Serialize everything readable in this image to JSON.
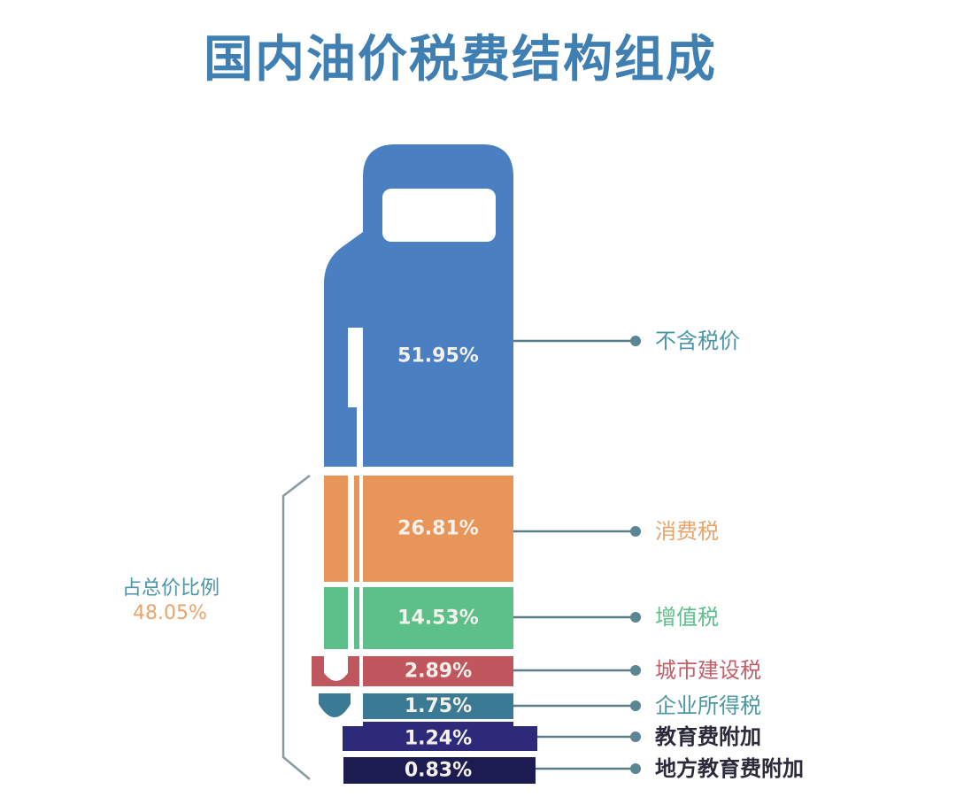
{
  "chart_data": {
    "type": "bar",
    "title": "国内油价税费结构组成",
    "unit": "%",
    "categories": [
      "不含税价",
      "消费税",
      "增值税",
      "城市建设税",
      "企业所得税",
      "教育费附加",
      "地方教育费附加"
    ],
    "values": [
      51.95,
      26.81,
      14.53,
      2.89,
      1.75,
      1.24,
      0.83
    ],
    "value_labels": [
      "51.95%",
      "26.81%",
      "14.53%",
      "2.89%",
      "1.75%",
      "1.24%",
      "0.83%"
    ],
    "colors": [
      "#4a7fc1",
      "#e8955a",
      "#5dbf8a",
      "#c0575e",
      "#3a7a94",
      "#2e2a7a",
      "#1c1c52"
    ],
    "label_colors": [
      "#4b95a8",
      "#e8a46a",
      "#5dbf8a",
      "#c0606a",
      "#4a98a0",
      "#2a2a3a",
      "#2a2a3a"
    ],
    "stacked": true,
    "shape": "fuel-pump",
    "bracket": {
      "label": "占总价比例",
      "value": "48.05%",
      "covers": [
        "消费税",
        "增值税",
        "城市建设税",
        "企业所得税",
        "教育费附加",
        "地方教育费附加"
      ]
    }
  }
}
